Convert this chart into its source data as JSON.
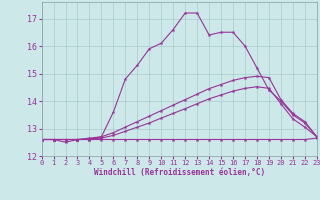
{
  "background_color": "#cce8e8",
  "grid_color": "#aacccc",
  "line_color": "#993399",
  "xlabel": "Windchill (Refroidissement éolien,°C)",
  "xlabel_color": "#993399",
  "tick_color": "#993399",
  "xlim": [
    0,
    23
  ],
  "ylim": [
    12,
    17.6
  ],
  "yticks": [
    12,
    13,
    14,
    15,
    16,
    17
  ],
  "xticks": [
    0,
    1,
    2,
    3,
    4,
    5,
    6,
    7,
    8,
    9,
    10,
    11,
    12,
    13,
    14,
    15,
    16,
    17,
    18,
    19,
    20,
    21,
    22,
    23
  ],
  "line1_x": [
    0,
    1,
    2,
    3,
    4,
    5,
    6,
    7,
    8,
    9,
    10,
    11,
    12,
    13,
    14,
    15,
    16,
    17,
    18,
    19,
    20,
    21,
    22,
    23
  ],
  "line1_y": [
    12.6,
    12.6,
    12.5,
    12.6,
    12.6,
    12.7,
    13.6,
    14.8,
    15.3,
    15.9,
    16.1,
    16.6,
    17.2,
    17.2,
    16.4,
    16.5,
    16.5,
    16.0,
    15.2,
    14.4,
    14.0,
    13.5,
    13.2,
    12.7
  ],
  "line2_x": [
    0,
    1,
    2,
    3,
    4,
    5,
    6,
    7,
    8,
    9,
    10,
    11,
    12,
    13,
    14,
    15,
    16,
    17,
    18,
    19,
    20,
    21,
    22,
    23
  ],
  "line2_y": [
    12.6,
    12.6,
    12.6,
    12.6,
    12.6,
    12.6,
    12.6,
    12.6,
    12.6,
    12.6,
    12.6,
    12.6,
    12.6,
    12.6,
    12.6,
    12.6,
    12.6,
    12.6,
    12.6,
    12.6,
    12.6,
    12.6,
    12.6,
    12.65
  ],
  "line3_x": [
    0,
    1,
    2,
    3,
    4,
    5,
    6,
    7,
    8,
    9,
    10,
    11,
    12,
    13,
    14,
    15,
    16,
    17,
    18,
    19,
    20,
    21,
    22,
    23
  ],
  "line3_y": [
    12.6,
    12.6,
    12.6,
    12.6,
    12.65,
    12.7,
    12.85,
    13.05,
    13.25,
    13.45,
    13.65,
    13.85,
    14.05,
    14.25,
    14.45,
    14.6,
    14.75,
    14.85,
    14.9,
    14.85,
    14.05,
    13.55,
    13.25,
    12.7
  ],
  "line4_x": [
    0,
    1,
    2,
    3,
    4,
    5,
    6,
    7,
    8,
    9,
    10,
    11,
    12,
    13,
    14,
    15,
    16,
    17,
    18,
    19,
    20,
    21,
    22,
    23
  ],
  "line4_y": [
    12.6,
    12.6,
    12.6,
    12.6,
    12.62,
    12.65,
    12.75,
    12.9,
    13.05,
    13.2,
    13.38,
    13.55,
    13.72,
    13.9,
    14.08,
    14.22,
    14.36,
    14.46,
    14.52,
    14.46,
    13.9,
    13.35,
    13.05,
    12.7
  ]
}
